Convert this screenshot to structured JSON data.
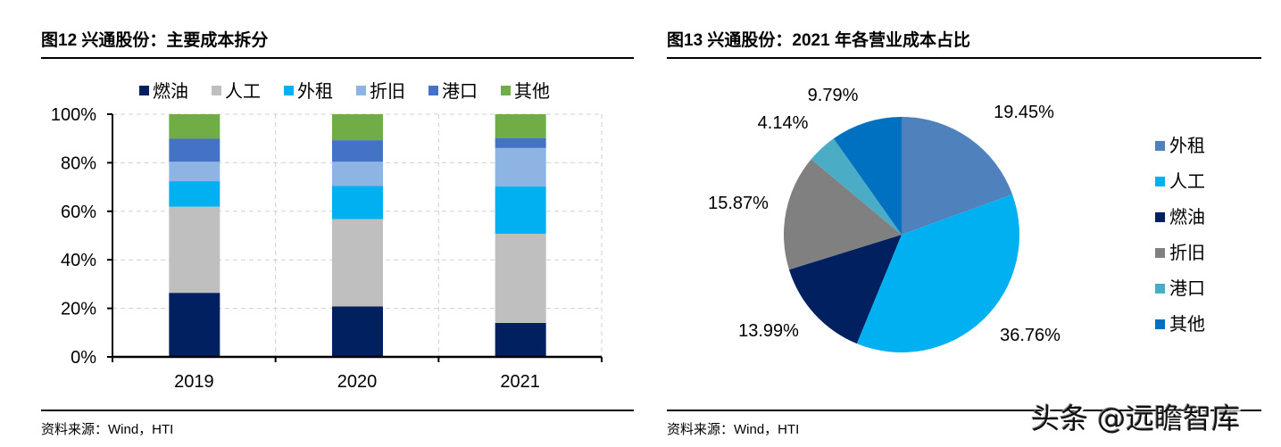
{
  "left": {
    "title": "图12  兴通股份：主要成本拆分",
    "source": "资料来源：Wind，HTI"
  },
  "right": {
    "title": "图13  兴通股份：2021 年各营业成本占比",
    "source": "资料来源：Wind，HTI"
  },
  "watermark": "头条 @远瞻智库",
  "chart_data": [
    {
      "type": "bar",
      "stacked": true,
      "categories": [
        "2019",
        "2020",
        "2021"
      ],
      "ylim": [
        0,
        100
      ],
      "yticks": [
        "0%",
        "20%",
        "40%",
        "60%",
        "80%",
        "100%"
      ],
      "grid": true,
      "legend": "top",
      "series": [
        {
          "name": "燃油",
          "color": "#002060",
          "values": [
            26.4,
            20.8,
            13.99
          ]
        },
        {
          "name": "人工",
          "color": "#BFBFBF",
          "values": [
            35.5,
            36.0,
            36.76
          ]
        },
        {
          "name": "外租",
          "color": "#00B0F0",
          "values": [
            10.5,
            13.6,
            19.45
          ]
        },
        {
          "name": "折旧",
          "color": "#8EB4E3",
          "values": [
            8.0,
            10.0,
            15.87
          ]
        },
        {
          "name": "港口",
          "color": "#4472C4",
          "values": [
            9.5,
            8.9,
            4.14
          ]
        },
        {
          "name": "其他",
          "color": "#70AD47",
          "values": [
            10.1,
            10.7,
            9.79
          ]
        }
      ]
    },
    {
      "type": "pie",
      "legend": "right",
      "slices": [
        {
          "name": "外租",
          "value": 19.45,
          "label": "19.45%",
          "color": "#4F81BD"
        },
        {
          "name": "人工",
          "value": 36.76,
          "label": "36.76%",
          "color": "#00B0F0"
        },
        {
          "name": "燃油",
          "value": 13.99,
          "label": "13.99%",
          "color": "#002060"
        },
        {
          "name": "折旧",
          "value": 15.87,
          "label": "15.87%",
          "color": "#808080"
        },
        {
          "name": "港口",
          "value": 4.14,
          "label": "4.14%",
          "color": "#4BACC6"
        },
        {
          "name": "其他",
          "value": 9.79,
          "label": "9.79%",
          "color": "#0070C0"
        }
      ]
    }
  ]
}
